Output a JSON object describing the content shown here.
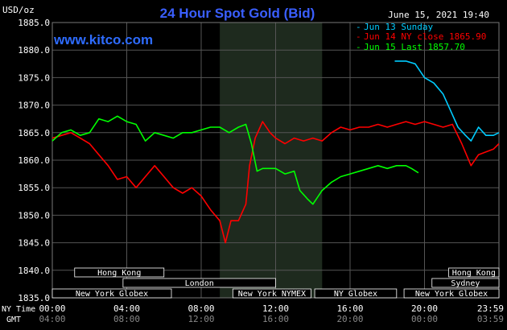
{
  "chart_data": {
    "type": "line",
    "title": "24 Hour Spot Gold (Bid)",
    "ylabel": "USD/oz",
    "watermark": "www.kitco.com",
    "timestamp": "June 15, 2021 19:40",
    "ylim": [
      1835.0,
      1885.0
    ],
    "y_ticks": [
      "1885.0",
      "1880.0",
      "1875.0",
      "1870.0",
      "1865.0",
      "1860.0",
      "1855.0",
      "1850.0",
      "1845.0",
      "1840.0",
      "1835.0"
    ],
    "x_range_hours": [
      0,
      24
    ],
    "x_ticks": [
      {
        "ny": "00:00",
        "gmt": "04:00"
      },
      {
        "ny": "04:00",
        "gmt": "08:00"
      },
      {
        "ny": "08:00",
        "gmt": "12:00"
      },
      {
        "ny": "12:00",
        "gmt": "16:00"
      },
      {
        "ny": "16:00",
        "gmt": "20:00"
      },
      {
        "ny": "20:00",
        "gmt": "00:00"
      },
      {
        "ny": "23:59",
        "gmt": "03:59"
      }
    ],
    "x_row_labels": {
      "ny": "NY Time",
      "gmt": "GMT"
    },
    "legend_position": "top-right",
    "shaded_period": [
      9.0,
      14.5
    ],
    "sessions": [
      {
        "name": "Hong Kong",
        "start": 1.2,
        "end": 6.0,
        "row": 0
      },
      {
        "name": "London",
        "start": 3.8,
        "end": 12.0,
        "row": 1
      },
      {
        "name": "New York Globex",
        "start": 0.0,
        "end": 6.4,
        "row": 2
      },
      {
        "name": "New York NYMEX",
        "start": 9.7,
        "end": 13.9,
        "row": 2
      },
      {
        "name": "NY Globex",
        "start": 14.1,
        "end": 18.5,
        "row": 2
      },
      {
        "name": "Hong Kong",
        "start": 21.3,
        "end": 24.0,
        "row": 0
      },
      {
        "name": "Sydney",
        "start": 20.4,
        "end": 24.0,
        "row": 1
      },
      {
        "name": "New York Globex",
        "start": 18.9,
        "end": 24.0,
        "row": 2
      }
    ],
    "series": [
      {
        "name": "Jun 13 Sunday",
        "color": "#00ccff",
        "points": [
          [
            18.4,
            1878
          ],
          [
            19.0,
            1878
          ],
          [
            19.5,
            1877.5
          ],
          [
            20.0,
            1875
          ],
          [
            20.5,
            1874
          ],
          [
            21.0,
            1872
          ],
          [
            21.4,
            1869
          ],
          [
            21.8,
            1866
          ],
          [
            22.2,
            1864.5
          ],
          [
            22.5,
            1863.5
          ],
          [
            22.9,
            1866
          ],
          [
            23.3,
            1864.5
          ],
          [
            23.7,
            1864.5
          ],
          [
            24.0,
            1865
          ]
        ]
      },
      {
        "name": "Jun 14 NY close 1865.90",
        "color": "#ff0000",
        "points": [
          [
            0,
            1864
          ],
          [
            0.5,
            1864.5
          ],
          [
            1.0,
            1865
          ],
          [
            1.5,
            1864
          ],
          [
            2.0,
            1863
          ],
          [
            2.5,
            1861
          ],
          [
            3.0,
            1859
          ],
          [
            3.5,
            1856.5
          ],
          [
            4.0,
            1857
          ],
          [
            4.5,
            1855
          ],
          [
            5.0,
            1857
          ],
          [
            5.5,
            1859
          ],
          [
            6.0,
            1857
          ],
          [
            6.5,
            1855
          ],
          [
            7.0,
            1854
          ],
          [
            7.5,
            1855
          ],
          [
            8.0,
            1853.5
          ],
          [
            8.5,
            1851
          ],
          [
            9.0,
            1849
          ],
          [
            9.3,
            1845
          ],
          [
            9.6,
            1849
          ],
          [
            10.0,
            1849
          ],
          [
            10.4,
            1852
          ],
          [
            10.6,
            1859
          ],
          [
            10.9,
            1864
          ],
          [
            11.3,
            1867
          ],
          [
            11.7,
            1865
          ],
          [
            12.0,
            1864
          ],
          [
            12.5,
            1863
          ],
          [
            13.0,
            1864
          ],
          [
            13.5,
            1863.5
          ],
          [
            14.0,
            1864
          ],
          [
            14.5,
            1863.5
          ],
          [
            15.0,
            1865
          ],
          [
            15.5,
            1866
          ],
          [
            16.0,
            1865.5
          ],
          [
            16.5,
            1866
          ],
          [
            17.0,
            1866
          ],
          [
            17.5,
            1866.5
          ],
          [
            18.0,
            1866
          ],
          [
            18.5,
            1866.5
          ],
          [
            19.0,
            1867
          ],
          [
            19.5,
            1866.5
          ],
          [
            20.0,
            1867
          ],
          [
            20.5,
            1866.5
          ],
          [
            21.0,
            1866
          ],
          [
            21.5,
            1866.5
          ],
          [
            22.0,
            1863
          ],
          [
            22.5,
            1859
          ],
          [
            22.9,
            1861
          ],
          [
            23.3,
            1861.5
          ],
          [
            23.7,
            1862
          ],
          [
            24.0,
            1863
          ]
        ]
      },
      {
        "name": "Jun 15 Last 1857.70",
        "color": "#00ff00",
        "points": [
          [
            0,
            1863.5
          ],
          [
            0.5,
            1865
          ],
          [
            1.0,
            1865.5
          ],
          [
            1.5,
            1864.5
          ],
          [
            2.0,
            1865
          ],
          [
            2.5,
            1867.5
          ],
          [
            3.0,
            1867
          ],
          [
            3.5,
            1868
          ],
          [
            4.0,
            1867
          ],
          [
            4.5,
            1866.5
          ],
          [
            5.0,
            1863.5
          ],
          [
            5.5,
            1865
          ],
          [
            6.0,
            1864.5
          ],
          [
            6.5,
            1864
          ],
          [
            7.0,
            1865
          ],
          [
            7.5,
            1865
          ],
          [
            8.0,
            1865.5
          ],
          [
            8.5,
            1866
          ],
          [
            9.0,
            1866
          ],
          [
            9.5,
            1865
          ],
          [
            10.0,
            1866
          ],
          [
            10.4,
            1866.5
          ],
          [
            10.7,
            1863
          ],
          [
            11.0,
            1858
          ],
          [
            11.3,
            1858.5
          ],
          [
            12.0,
            1858.5
          ],
          [
            12.5,
            1857.5
          ],
          [
            13.0,
            1858
          ],
          [
            13.3,
            1854.5
          ],
          [
            13.7,
            1853
          ],
          [
            14.0,
            1852
          ],
          [
            14.5,
            1854.5
          ],
          [
            15.0,
            1856
          ],
          [
            15.5,
            1857
          ],
          [
            16.0,
            1857.5
          ],
          [
            16.5,
            1858
          ],
          [
            17.0,
            1858.5
          ],
          [
            17.5,
            1859
          ],
          [
            18.0,
            1858.5
          ],
          [
            18.5,
            1859
          ],
          [
            19.0,
            1859
          ],
          [
            19.3,
            1858.5
          ],
          [
            19.67,
            1857.7
          ]
        ]
      }
    ]
  }
}
